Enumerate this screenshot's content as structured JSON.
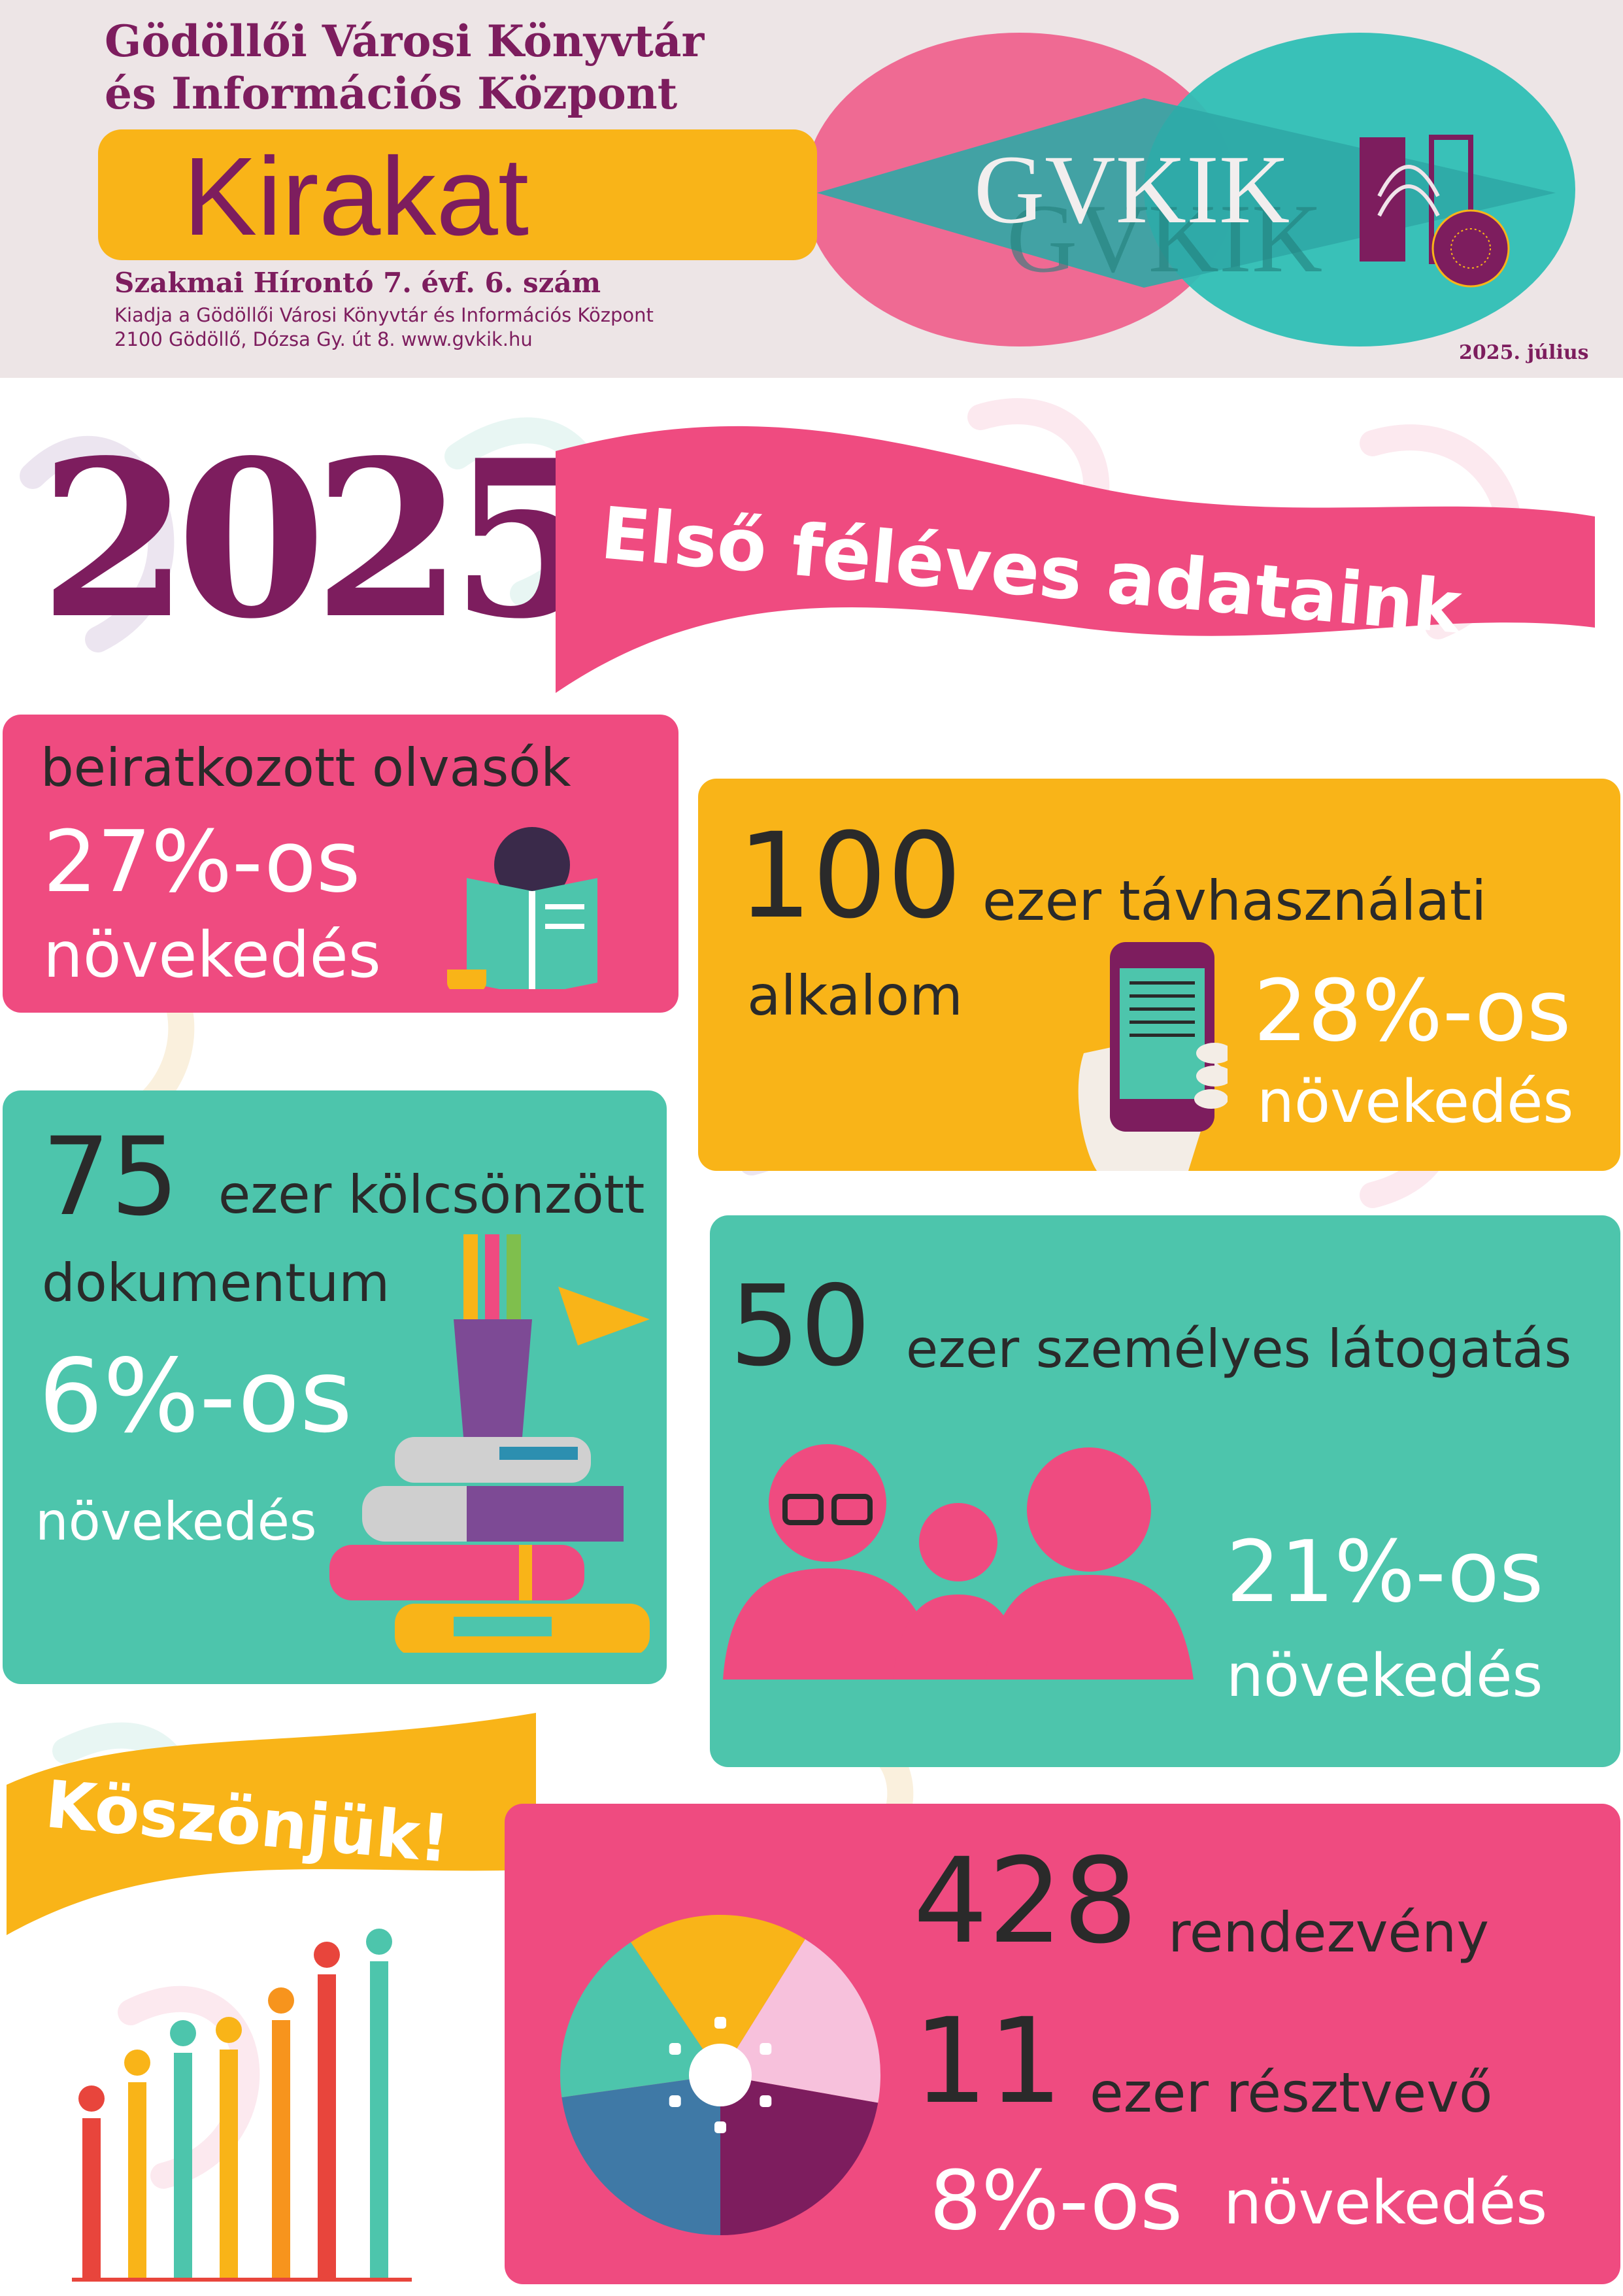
{
  "header": {
    "org_line1": "Gödöllői Városi Könyvtár",
    "org_line2": "és Információs Központ",
    "title": "Kirakat",
    "subtitle": "Szakmai Hírontó 7. évf. 6. szám",
    "publisher": "Kiadja a Gödöllői Városi Könyvtár és Információs Központ",
    "address": "2100 Gödöllő, Dózsa Gy. út 8.  www.gvkik.hu",
    "logo_text": "GVKIK",
    "date": "2025. július"
  },
  "hero": {
    "year": "2025",
    "banner": "Első féléves adataink"
  },
  "stats": {
    "readers": {
      "label": "beiratkozott olvasók",
      "percent": "27%-os",
      "growth": "növekedés"
    },
    "remote": {
      "number": "100",
      "label1": "ezer távhasználati",
      "label2": "alkalom",
      "percent": "28%-os",
      "growth": "növekedés"
    },
    "loans": {
      "number": "75",
      "label1": "ezer kölcsönzött",
      "label2": "dokumentum",
      "percent": "6%-os",
      "growth": "növekedés"
    },
    "visits": {
      "number": "50",
      "label1": "ezer személyes látogatás",
      "percent": "21%-os",
      "growth": "növekedés"
    },
    "events": {
      "number1": "428",
      "label1": "rendezvény",
      "number2": "11",
      "label2": "ezer résztvevő",
      "percent": "8%-os",
      "growth": "növekedés"
    }
  },
  "thanks": "Köszönjük!",
  "colors": {
    "purple": "#7d1d5e",
    "pink": "#ef4b80",
    "yellow": "#f9b418",
    "teal": "#4dc5ac",
    "header_bg": "#ede5e6"
  }
}
